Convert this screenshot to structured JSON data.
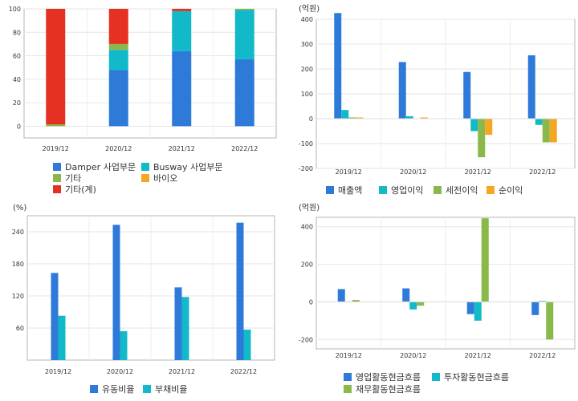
{
  "colors": {
    "blue": "#2e7ad9",
    "cyan": "#12b9c9",
    "green": "#8ab84a",
    "red": "#e53122",
    "orange": "#f5a623"
  },
  "chart_data": [
    {
      "type": "bar",
      "stacked": true,
      "unit_label": "",
      "categories": [
        "2019/12",
        "2020/12",
        "2021/12",
        "2022/12"
      ],
      "ylim": [
        -10,
        100
      ],
      "yticks": [
        0,
        20,
        40,
        60,
        80,
        100
      ],
      "series": [
        {
          "name": "Damper 사업부문",
          "color": "#2e7ad9",
          "values": [
            0,
            48,
            64,
            57
          ]
        },
        {
          "name": "Busway 사업부문",
          "color": "#12b9c9",
          "values": [
            0,
            17,
            34,
            42
          ]
        },
        {
          "name": "기타",
          "color": "#8ab84a",
          "values": [
            1.5,
            5,
            0,
            1
          ]
        },
        {
          "name": "바이오",
          "color": "#f5a623",
          "values": [
            0,
            0,
            0,
            0
          ]
        },
        {
          "name": "기타(계)",
          "color": "#e53122",
          "values": [
            98.5,
            30,
            2,
            0
          ]
        }
      ],
      "legend": [
        {
          "name": "Damper 사업부문",
          "color": "#2e7ad9"
        },
        {
          "name": "Busway 사업부문",
          "color": "#12b9c9"
        },
        {
          "name": "기타",
          "color": "#8ab84a"
        },
        {
          "name": "바이오",
          "color": "#f5a623"
        },
        {
          "name": "기타(계)",
          "color": "#e53122"
        }
      ]
    },
    {
      "type": "bar",
      "unit_label": "(억원)",
      "categories": [
        "2019/12",
        "2020/12",
        "2021/12",
        "2022/12"
      ],
      "ylim": [
        -200,
        400
      ],
      "yticks": [
        -200,
        -100,
        0,
        100,
        200,
        300,
        400
      ],
      "series": [
        {
          "name": "매출액",
          "color": "#2e7ad9",
          "values": [
            425,
            228,
            188,
            255
          ]
        },
        {
          "name": "영업이익",
          "color": "#12b9c9",
          "values": [
            35,
            10,
            -50,
            -25
          ]
        },
        {
          "name": "세전이익",
          "color": "#8ab84a",
          "values": [
            5,
            0,
            -155,
            -95
          ]
        },
        {
          "name": "순이익",
          "color": "#f5a623",
          "values": [
            5,
            5,
            -65,
            -95
          ]
        }
      ],
      "legend": [
        {
          "name": "매출액",
          "color": "#2e7ad9"
        },
        {
          "name": "영업이익",
          "color": "#12b9c9"
        },
        {
          "name": "세전이익",
          "color": "#8ab84a"
        },
        {
          "name": "순이익",
          "color": "#f5a623"
        }
      ]
    },
    {
      "type": "bar",
      "unit_label": "(%)",
      "categories": [
        "2019/12",
        "2020/12",
        "2021/12",
        "2022/12"
      ],
      "ylim": [
        0,
        270
      ],
      "yticks": [
        60,
        120,
        180,
        240
      ],
      "series": [
        {
          "name": "유동비율",
          "color": "#2e7ad9",
          "values": [
            163,
            253,
            136,
            257
          ]
        },
        {
          "name": "부채비율",
          "color": "#12b9c9",
          "values": [
            83,
            54,
            118,
            57
          ]
        }
      ],
      "legend": [
        {
          "name": "유동비율",
          "color": "#2e7ad9"
        },
        {
          "name": "부채비율",
          "color": "#12b9c9"
        }
      ]
    },
    {
      "type": "bar",
      "unit_label": "(억원)",
      "categories": [
        "2019/12",
        "2020/12",
        "2021/12",
        "2022/12"
      ],
      "ylim": [
        -250,
        450
      ],
      "yticks": [
        -200,
        0,
        200,
        400
      ],
      "series": [
        {
          "name": "영업활동현금흐름",
          "color": "#2e7ad9",
          "values": [
            68,
            72,
            -65,
            -70
          ]
        },
        {
          "name": "투자활동현금흐름",
          "color": "#12b9c9",
          "values": [
            0,
            -40,
            -100,
            5
          ]
        },
        {
          "name": "재무활동현금흐름",
          "color": "#8ab84a",
          "values": [
            10,
            -20,
            445,
            -200
          ]
        }
      ],
      "legend": [
        {
          "name": "영업활동현금흐름",
          "color": "#2e7ad9"
        },
        {
          "name": "투자활동현금흐름",
          "color": "#12b9c9"
        },
        {
          "name": "재무활동현금흐름",
          "color": "#8ab84a"
        }
      ]
    }
  ]
}
